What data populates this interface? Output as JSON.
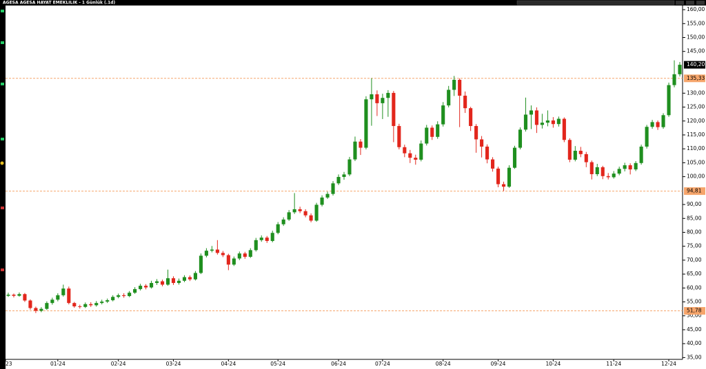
{
  "chart_data": {
    "type": "candlestick",
    "title": "AGESA AGESA HAYAT EMEKLILIK - 1 Günlük (.1d)",
    "up_color": "#1f8f1f",
    "down_color": "#e2261c",
    "level_color": "#f6a56b",
    "xlim": [
      -0.5,
      122.5
    ],
    "xticks": [
      {
        "value": -0.5,
        "label": "23"
      },
      {
        "value": 9,
        "label": "01-24"
      },
      {
        "value": 20,
        "label": "02-24"
      },
      {
        "value": 30,
        "label": "03-24"
      },
      {
        "value": 40,
        "label": "04-24"
      },
      {
        "value": 49,
        "label": "05-24"
      },
      {
        "value": 60,
        "label": "06-24"
      },
      {
        "value": 68,
        "label": "07-24"
      },
      {
        "value": 79,
        "label": "08-24"
      },
      {
        "value": 89,
        "label": "09-24"
      },
      {
        "value": 99,
        "label": "10-24"
      },
      {
        "value": 110,
        "label": "11-24"
      },
      {
        "value": 120,
        "label": "12-24"
      }
    ],
    "ylim": [
      34.6,
      161.5
    ],
    "yticks": [
      {
        "value": 35,
        "label": "35,00"
      },
      {
        "value": 40,
        "label": "40,00"
      },
      {
        "value": 45,
        "label": "45,00"
      },
      {
        "value": 50,
        "label": "50,00"
      },
      {
        "value": 55,
        "label": "55,00"
      },
      {
        "value": 60,
        "label": "60,00"
      },
      {
        "value": 65,
        "label": "65,00"
      },
      {
        "value": 70,
        "label": "70,00"
      },
      {
        "value": 75,
        "label": "75,00"
      },
      {
        "value": 80,
        "label": "80,00"
      },
      {
        "value": 85,
        "label": "85,00"
      },
      {
        "value": 90,
        "label": "90,00"
      },
      {
        "value": 100,
        "label": "100,00"
      },
      {
        "value": 105,
        "label": "105,00"
      },
      {
        "value": 110,
        "label": "110,00"
      },
      {
        "value": 115,
        "label": "115,00"
      },
      {
        "value": 120,
        "label": "120,00"
      },
      {
        "value": 125,
        "label": "125,00"
      },
      {
        "value": 130,
        "label": "130,00"
      },
      {
        "value": 145,
        "label": "145,00"
      },
      {
        "value": 150,
        "label": "150,00"
      },
      {
        "value": 155,
        "label": "155,00"
      },
      {
        "value": 160,
        "label": "160,00"
      }
    ],
    "levels": [
      {
        "value": 135.33,
        "label": "135,33"
      },
      {
        "value": 94.81,
        "label": "94,81"
      },
      {
        "value": 51.78,
        "label": "51,78"
      }
    ],
    "last_price": {
      "value": 140.2,
      "label": "140,20"
    },
    "open": [
      57.2,
      57.6,
      57.2,
      57.8,
      55.5,
      52.8,
      51.8,
      52.5,
      54.6,
      55.8,
      57.4,
      59.8,
      54.6,
      53.4,
      53.2,
      54.2,
      53.8,
      54.6,
      55.1,
      55.6,
      56.8,
      57.4,
      57.1,
      58.3,
      59.6,
      60.8,
      60.2,
      61.8,
      62.4,
      61.2,
      63.5,
      61.8,
      62.6,
      63.9,
      63.1,
      65.4,
      71.6,
      73.4,
      73.8,
      72.6,
      71.8,
      68.4,
      70.6,
      72.4,
      71.2,
      73.6,
      77.2,
      78.1,
      76.9,
      79.8,
      82.9,
      84.6,
      87.2,
      88.3,
      87.6,
      86.1,
      84.2,
      89.9,
      92.5,
      93.8,
      97.6,
      99.9,
      100.8,
      106.2,
      112.6,
      110.4,
      127.8,
      129.6,
      126.4,
      128.3,
      130.1,
      118.2,
      110.6,
      108.4,
      106.8,
      106.1,
      111.9,
      117.6,
      114.3,
      118.8,
      125.6,
      131.2,
      134.8,
      129.1,
      124.6,
      118.2,
      113.4,
      110.8,
      106.2,
      102.9,
      97.3,
      96.4,
      103.2,
      110.4,
      116.9,
      122.3,
      123.8,
      118.6,
      119.4,
      120.2,
      118.9,
      120.8,
      113.2,
      106.1,
      109.3,
      108.1,
      105.2,
      100.9,
      103.4,
      100.2,
      99.8,
      101.1,
      102.8,
      104.1,
      102.6,
      104.9,
      110.8,
      117.9,
      119.6,
      117.8,
      122.1,
      132.9,
      136.8
    ],
    "high": [
      58.3,
      58.0,
      58.4,
      58.2,
      55.9,
      53.3,
      53.1,
      55.2,
      56.5,
      58.1,
      61.2,
      60.5,
      55.0,
      54.0,
      54.8,
      54.9,
      55.3,
      55.8,
      56.2,
      57.4,
      58.0,
      58.1,
      58.9,
      60.3,
      61.5,
      61.4,
      62.6,
      63.2,
      63.0,
      66.6,
      64.2,
      63.4,
      64.6,
      64.5,
      66.1,
      72.4,
      74.3,
      75.1,
      77.2,
      73.3,
      72.3,
      71.3,
      73.1,
      73.0,
      74.3,
      78.0,
      78.9,
      78.7,
      80.6,
      83.7,
      85.4,
      88.0,
      94.1,
      89.2,
      88.3,
      86.8,
      90.6,
      93.3,
      94.6,
      98.4,
      100.8,
      101.7,
      107.1,
      114.4,
      113.5,
      128.9,
      135.4,
      131.0,
      129.8,
      131.1,
      130.8,
      119.0,
      111.5,
      109.6,
      107.9,
      113.0,
      118.6,
      118.4,
      119.9,
      126.8,
      132.6,
      136.2,
      135.3,
      130.6,
      125.1,
      118.9,
      114.6,
      111.6,
      107.0,
      103.6,
      98.2,
      104.1,
      111.1,
      117.7,
      128.4,
      125.6,
      124.9,
      122.6,
      123.8,
      121.4,
      121.6,
      121.3,
      113.8,
      111.0,
      110.7,
      108.9,
      105.8,
      104.6,
      103.9,
      101.3,
      102.0,
      103.6,
      105.0,
      104.8,
      105.6,
      111.5,
      118.6,
      120.4,
      120.2,
      122.8,
      133.8,
      141.8,
      141.2
    ],
    "low": [
      56.8,
      56.6,
      56.9,
      55.0,
      52.2,
      51.0,
      51.3,
      52.1,
      54.0,
      55.2,
      56.9,
      54.1,
      52.9,
      52.6,
      52.8,
      53.2,
      53.3,
      54.1,
      54.6,
      55.2,
      56.3,
      56.5,
      56.7,
      57.9,
      59.1,
      59.5,
      59.8,
      61.1,
      60.6,
      60.8,
      61.1,
      61.2,
      62.1,
      62.5,
      62.7,
      65.0,
      71.0,
      72.8,
      72.0,
      71.1,
      66.4,
      67.9,
      70.0,
      70.5,
      70.8,
      73.1,
      76.6,
      76.2,
      76.4,
      79.3,
      82.3,
      84.1,
      86.6,
      86.9,
      85.4,
      83.6,
      83.8,
      89.3,
      92.0,
      93.2,
      97.0,
      98.9,
      100.2,
      105.6,
      107.8,
      109.8,
      118.3,
      121.8,
      120.7,
      121.5,
      112.4,
      109.8,
      107.0,
      104.9,
      104.3,
      105.5,
      111.2,
      113.2,
      113.6,
      118.0,
      124.9,
      129.0,
      117.8,
      122.9,
      116.4,
      108.6,
      106.9,
      104.8,
      101.8,
      96.2,
      94.8,
      96.0,
      102.8,
      109.8,
      116.2,
      117.1,
      115.7,
      117.3,
      118.1,
      117.6,
      118.0,
      112.4,
      105.2,
      105.5,
      107.0,
      103.4,
      99.0,
      100.2,
      99.1,
      99.0,
      99.3,
      100.5,
      101.9,
      100.8,
      102.0,
      104.3,
      110.1,
      117.2,
      116.8,
      117.2,
      121.5,
      132.1,
      136.0
    ],
    "close": [
      57.6,
      57.2,
      57.8,
      55.5,
      52.8,
      51.8,
      52.5,
      54.6,
      55.8,
      57.4,
      59.8,
      54.6,
      53.4,
      53.2,
      54.2,
      53.8,
      54.6,
      55.1,
      55.6,
      56.8,
      57.4,
      57.1,
      58.3,
      59.6,
      60.8,
      60.2,
      61.8,
      62.4,
      61.2,
      63.5,
      61.8,
      62.6,
      63.9,
      63.1,
      65.4,
      71.6,
      73.4,
      73.8,
      72.6,
      71.8,
      68.4,
      70.6,
      72.4,
      71.2,
      73.6,
      77.2,
      78.1,
      76.9,
      79.8,
      82.9,
      84.6,
      87.2,
      88.3,
      87.6,
      86.1,
      84.2,
      89.9,
      92.5,
      93.8,
      97.6,
      99.9,
      100.8,
      106.2,
      112.6,
      110.4,
      127.8,
      129.6,
      126.4,
      128.3,
      130.1,
      118.2,
      110.6,
      108.4,
      106.8,
      106.1,
      111.9,
      117.6,
      114.3,
      118.8,
      125.6,
      131.2,
      134.8,
      129.1,
      124.6,
      118.2,
      113.4,
      110.8,
      106.2,
      102.9,
      97.3,
      96.4,
      103.2,
      110.4,
      116.9,
      122.3,
      123.8,
      118.6,
      119.4,
      120.2,
      118.9,
      120.8,
      113.2,
      106.1,
      109.3,
      108.1,
      105.2,
      100.9,
      103.4,
      100.2,
      99.8,
      101.1,
      102.8,
      104.1,
      102.6,
      104.9,
      110.8,
      117.9,
      119.6,
      117.8,
      122.1,
      132.9,
      136.8,
      140.2
    ]
  }
}
